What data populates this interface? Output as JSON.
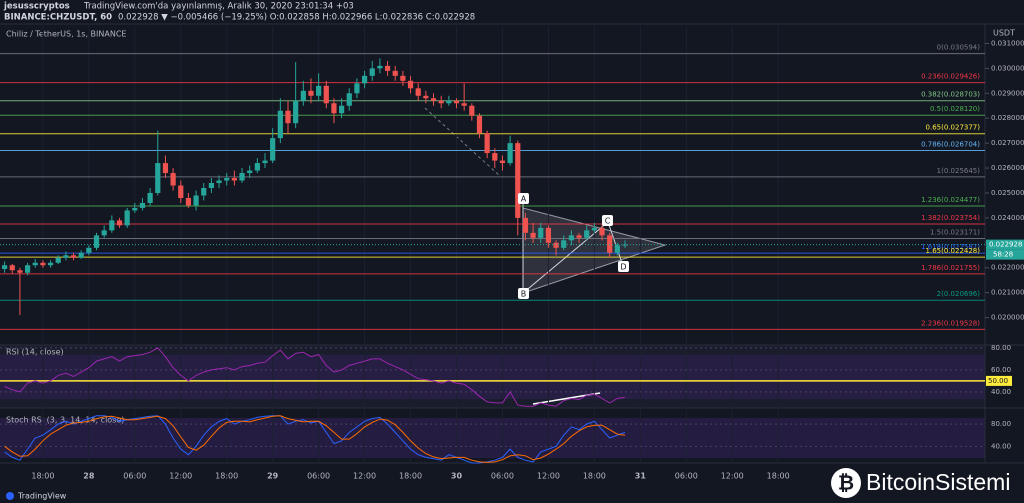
{
  "header": {
    "author": "jesusscryptos",
    "published": "TradingView.com'da yayınlanmış, Aralık 30, 2020 23:01:34 +03",
    "symbol": "BINANCE:CHZUSDT, 60",
    "quote": "0.022928 ▼ −0.005466 (−19.25%) O:0.022858 H:0.022966 L:0.022836 C:0.022928"
  },
  "chart_data": [
    {
      "type": "candlestick",
      "title": "Chiliz / TetherUS, 1s, BINANCE",
      "currency": "USDT",
      "up_color": "#26a69a",
      "down_color": "#ef5350",
      "xlim": [
        -0.6,
        128
      ],
      "ylim": [
        0.0189,
        0.0317
      ],
      "xticks": [
        {
          "value": 5,
          "label": "18:00"
        },
        {
          "value": 11,
          "label": "28"
        },
        {
          "value": 17,
          "label": "06:00"
        },
        {
          "value": 23,
          "label": "12:00"
        },
        {
          "value": 29,
          "label": "18:00"
        },
        {
          "value": 35,
          "label": "29"
        },
        {
          "value": 41,
          "label": "06:00"
        },
        {
          "value": 47,
          "label": "12:00"
        },
        {
          "value": 53,
          "label": "18:00"
        },
        {
          "value": 59,
          "label": "30"
        },
        {
          "value": 65,
          "label": "06:00"
        },
        {
          "value": 71,
          "label": "12:00"
        },
        {
          "value": 77,
          "label": "18:00"
        },
        {
          "value": 83,
          "label": "31"
        },
        {
          "value": 89,
          "label": "06:00"
        },
        {
          "value": 95,
          "label": "12:00"
        },
        {
          "value": 101,
          "label": "18:00"
        }
      ],
      "yticks": [
        {
          "value": 0.031,
          "label": "0.031000"
        },
        {
          "value": 0.03,
          "label": "0.030000"
        },
        {
          "value": 0.029,
          "label": "0.029000"
        },
        {
          "value": 0.028,
          "label": "0.028000"
        },
        {
          "value": 0.027,
          "label": "0.027000"
        },
        {
          "value": 0.026,
          "label": "0.026000"
        },
        {
          "value": 0.025,
          "label": "0.025000"
        },
        {
          "value": 0.024,
          "label": "0.024000"
        },
        {
          "value": 0.023,
          "label": "0.023000"
        },
        {
          "value": 0.022,
          "label": "0.022000"
        },
        {
          "value": 0.021,
          "label": "0.021000"
        },
        {
          "value": 0.02,
          "label": "0.020000"
        }
      ],
      "candles": [
        [
          0.02195,
          0.02225,
          0.0218,
          0.0221
        ],
        [
          0.0221,
          0.02215,
          0.02175,
          0.0219
        ],
        [
          0.0219,
          0.022,
          0.0201,
          0.0218
        ],
        [
          0.0218,
          0.0222,
          0.0217,
          0.0221
        ],
        [
          0.0221,
          0.02235,
          0.022,
          0.0222
        ],
        [
          0.0222,
          0.0223,
          0.022,
          0.0221
        ],
        [
          0.0221,
          0.0223,
          0.022,
          0.0222
        ],
        [
          0.0222,
          0.0225,
          0.02215,
          0.0224
        ],
        [
          0.0224,
          0.02265,
          0.0223,
          0.0225
        ],
        [
          0.0225,
          0.0226,
          0.0223,
          0.0224
        ],
        [
          0.0224,
          0.0227,
          0.02235,
          0.0226
        ],
        [
          0.0226,
          0.0229,
          0.0225,
          0.0228
        ],
        [
          0.0228,
          0.0234,
          0.0227,
          0.0233
        ],
        [
          0.0233,
          0.0237,
          0.0232,
          0.0235
        ],
        [
          0.0235,
          0.0241,
          0.0234,
          0.0239
        ],
        [
          0.0239,
          0.024,
          0.0236,
          0.0237
        ],
        [
          0.0237,
          0.0244,
          0.0236,
          0.0243
        ],
        [
          0.0243,
          0.0246,
          0.0242,
          0.0244
        ],
        [
          0.0244,
          0.0248,
          0.0243,
          0.0246
        ],
        [
          0.0246,
          0.0252,
          0.0245,
          0.025
        ],
        [
          0.025,
          0.0275,
          0.0249,
          0.0262
        ],
        [
          0.0262,
          0.0265,
          0.0256,
          0.0258
        ],
        [
          0.0258,
          0.026,
          0.0251,
          0.0253
        ],
        [
          0.0253,
          0.0255,
          0.0246,
          0.0248
        ],
        [
          0.0248,
          0.025,
          0.0244,
          0.0245
        ],
        [
          0.0245,
          0.0251,
          0.0243,
          0.0249
        ],
        [
          0.0249,
          0.0254,
          0.0247,
          0.0252
        ],
        [
          0.0252,
          0.0256,
          0.025,
          0.0254
        ],
        [
          0.0254,
          0.0257,
          0.0252,
          0.0255
        ],
        [
          0.0255,
          0.0258,
          0.0253,
          0.0256
        ],
        [
          0.0256,
          0.0259,
          0.0253,
          0.0255
        ],
        [
          0.0255,
          0.026,
          0.0254,
          0.0258
        ],
        [
          0.0258,
          0.0261,
          0.0256,
          0.0259
        ],
        [
          0.0259,
          0.0264,
          0.0258,
          0.0262
        ],
        [
          0.0262,
          0.0266,
          0.026,
          0.0263
        ],
        [
          0.0263,
          0.0276,
          0.0262,
          0.0272
        ],
        [
          0.0272,
          0.0288,
          0.027,
          0.0283
        ],
        [
          0.0283,
          0.0287,
          0.0274,
          0.0278
        ],
        [
          0.0278,
          0.03025,
          0.0276,
          0.0287
        ],
        [
          0.0287,
          0.0295,
          0.0285,
          0.0291
        ],
        [
          0.0291,
          0.0296,
          0.0286,
          0.0289
        ],
        [
          0.0289,
          0.0298,
          0.0287,
          0.0293
        ],
        [
          0.0293,
          0.0295,
          0.0284,
          0.0286
        ],
        [
          0.0286,
          0.0288,
          0.0278,
          0.0282
        ],
        [
          0.0282,
          0.0288,
          0.028,
          0.0285
        ],
        [
          0.0285,
          0.0292,
          0.0283,
          0.029
        ],
        [
          0.029,
          0.0296,
          0.0288,
          0.0294
        ],
        [
          0.0294,
          0.0299,
          0.0292,
          0.0297
        ],
        [
          0.0297,
          0.0303,
          0.0295,
          0.03
        ],
        [
          0.03,
          0.0304,
          0.0298,
          0.0301
        ],
        [
          0.0301,
          0.0303,
          0.0297,
          0.0299
        ],
        [
          0.0299,
          0.0301,
          0.0295,
          0.0297
        ],
        [
          0.0297,
          0.0299,
          0.0293,
          0.0295
        ],
        [
          0.0295,
          0.0297,
          0.029,
          0.0292
        ],
        [
          0.0292,
          0.0294,
          0.0287,
          0.0289
        ],
        [
          0.0289,
          0.0291,
          0.0286,
          0.0288
        ],
        [
          0.0288,
          0.029,
          0.0285,
          0.0287
        ],
        [
          0.0287,
          0.0289,
          0.0284,
          0.0286
        ],
        [
          0.0286,
          0.0289,
          0.0285,
          0.0287
        ],
        [
          0.0287,
          0.0288,
          0.0284,
          0.0286
        ],
        [
          0.0286,
          0.0294,
          0.0283,
          0.0285
        ],
        [
          0.0285,
          0.0286,
          0.0279,
          0.0281
        ],
        [
          0.0281,
          0.0282,
          0.0272,
          0.0274
        ],
        [
          0.0274,
          0.0275,
          0.0264,
          0.0266
        ],
        [
          0.0266,
          0.0268,
          0.026,
          0.0263
        ],
        [
          0.0263,
          0.0265,
          0.0259,
          0.0262
        ],
        [
          0.0262,
          0.0273,
          0.0261,
          0.027
        ],
        [
          0.027,
          0.0271,
          0.0233,
          0.024
        ],
        [
          0.024,
          0.0242,
          0.0231,
          0.0234
        ],
        [
          0.0234,
          0.0238,
          0.023,
          0.0232
        ],
        [
          0.0232,
          0.0238,
          0.023,
          0.0236
        ],
        [
          0.0236,
          0.0237,
          0.0228,
          0.023
        ],
        [
          0.023,
          0.0231,
          0.0225,
          0.0228
        ],
        [
          0.0228,
          0.0233,
          0.0227,
          0.0231
        ],
        [
          0.0231,
          0.0235,
          0.0229,
          0.0233
        ],
        [
          0.0233,
          0.0234,
          0.023,
          0.0232
        ],
        [
          0.0232,
          0.0237,
          0.0231,
          0.0235
        ],
        [
          0.0235,
          0.0238,
          0.0234,
          0.0236
        ],
        [
          0.0236,
          0.0237,
          0.0231,
          0.0233
        ],
        [
          0.0233,
          0.0234,
          0.0224,
          0.0226
        ],
        [
          0.0226,
          0.023,
          0.0225,
          0.0229
        ],
        [
          0.0229,
          0.0231,
          0.0228,
          0.022928
        ]
      ],
      "fib_levels": [
        {
          "label": "0(0.030594)",
          "value": 0.030594,
          "color": "#787b86"
        },
        {
          "label": "0.236(0.029426)",
          "value": 0.029426,
          "color": "#f23645"
        },
        {
          "label": "0.382(0.028703)",
          "value": 0.028703,
          "color": "#81c784"
        },
        {
          "label": "0.5(0.028120)",
          "value": 0.02812,
          "color": "#4caf50"
        },
        {
          "label": "0.65(0.027377)",
          "value": 0.027377,
          "color": "#ffeb3b"
        },
        {
          "label": "0.786(0.026704)",
          "value": 0.026704,
          "color": "#64b5f6"
        },
        {
          "label": "1(0.025645)",
          "value": 0.025645,
          "color": "#787b86"
        },
        {
          "label": "1.236(0.024477)",
          "value": 0.024477,
          "color": "#4caf50"
        },
        {
          "label": "1.382(0.023754)",
          "value": 0.023754,
          "color": "#f23645"
        },
        {
          "label": "1.5(0.023171)",
          "value": 0.023171,
          "color": "#787b86"
        },
        {
          "label": "1.618(0.022587)",
          "value": 0.022587,
          "color": "#2962ff"
        },
        {
          "label": "1.65(0.022428)",
          "value": 0.022428,
          "color": "#ffeb3b"
        },
        {
          "label": "1.786(0.021755)",
          "value": 0.021755,
          "color": "#f23645"
        },
        {
          "label": "2(0.020696)",
          "value": 0.020696,
          "color": "#089981"
        },
        {
          "label": "2.236(0.019528)",
          "value": 0.019528,
          "color": "#f23645"
        }
      ],
      "last_price": {
        "value": 0.022928,
        "label": "0.022928"
      },
      "countdown": "58:28",
      "pattern_labels": [
        "A",
        "B",
        "C",
        "D"
      ]
    },
    {
      "type": "line",
      "title": "RSI (14, close)",
      "color": "#9c27b0",
      "ylim": [
        26,
        84
      ],
      "yticks": [
        {
          "value": 80,
          "label": "80.00"
        },
        {
          "value": 60,
          "label": "60.00"
        },
        {
          "value": 40,
          "label": "40.00"
        }
      ],
      "highlight": {
        "value": 50,
        "label": "50.00",
        "color": "#ffeb3b"
      },
      "values": [
        45,
        42,
        40,
        48,
        50,
        48,
        50,
        55,
        57,
        54,
        58,
        62,
        68,
        70,
        72,
        68,
        72,
        73,
        74,
        76,
        80,
        72,
        62,
        55,
        50,
        55,
        58,
        60,
        61,
        62,
        60,
        63,
        64,
        66,
        67,
        73,
        78,
        70,
        75,
        76,
        72,
        74,
        64,
        58,
        60,
        64,
        66,
        68,
        70,
        70,
        66,
        63,
        60,
        56,
        52,
        51,
        50,
        48,
        50,
        48,
        47,
        42,
        36,
        31,
        30,
        30,
        40,
        28,
        27,
        27,
        30,
        28,
        27,
        32,
        34,
        33,
        37,
        38,
        34,
        30,
        34,
        35
      ]
    },
    {
      "type": "line",
      "title": "Stoch RSI (3, 3, 14, 14, close)",
      "ylim": [
        10,
        100
      ],
      "yticks": [
        {
          "value": 80,
          "label": "80.00"
        },
        {
          "value": 40,
          "label": "40.00"
        }
      ],
      "series": [
        {
          "color": "#2962ff",
          "values": [
            30,
            20,
            15,
            35,
            55,
            60,
            70,
            80,
            85,
            80,
            85,
            90,
            95,
            95,
            92,
            85,
            88,
            90,
            92,
            94,
            95,
            80,
            55,
            35,
            25,
            40,
            60,
            75,
            85,
            90,
            80,
            85,
            88,
            92,
            94,
            95,
            95,
            80,
            85,
            88,
            82,
            85,
            65,
            45,
            50,
            65,
            75,
            85,
            90,
            92,
            80,
            65,
            50,
            35,
            25,
            20,
            18,
            15,
            25,
            20,
            15,
            10,
            10,
            12,
            15,
            20,
            35,
            20,
            15,
            12,
            30,
            35,
            40,
            60,
            75,
            70,
            80,
            85,
            70,
            55,
            60,
            65
          ]
        },
        {
          "color": "#ff6d00",
          "values": [
            40,
            30,
            22,
            23,
            35,
            50,
            62,
            70,
            78,
            82,
            83,
            85,
            90,
            93,
            94,
            91,
            88,
            88,
            90,
            92,
            94,
            90,
            77,
            57,
            38,
            33,
            42,
            58,
            73,
            83,
            85,
            85,
            84,
            88,
            91,
            94,
            95,
            90,
            87,
            84,
            85,
            85,
            77,
            65,
            53,
            53,
            63,
            75,
            83,
            89,
            87,
            79,
            65,
            50,
            37,
            27,
            21,
            18,
            19,
            20,
            20,
            15,
            12,
            11,
            12,
            16,
            23,
            25,
            23,
            16,
            19,
            26,
            35,
            45,
            58,
            68,
            75,
            78,
            78,
            70,
            62,
            60
          ]
        }
      ]
    }
  ],
  "footer": {
    "brand": "TradingView",
    "watermark": "BitcoinSistemi"
  }
}
